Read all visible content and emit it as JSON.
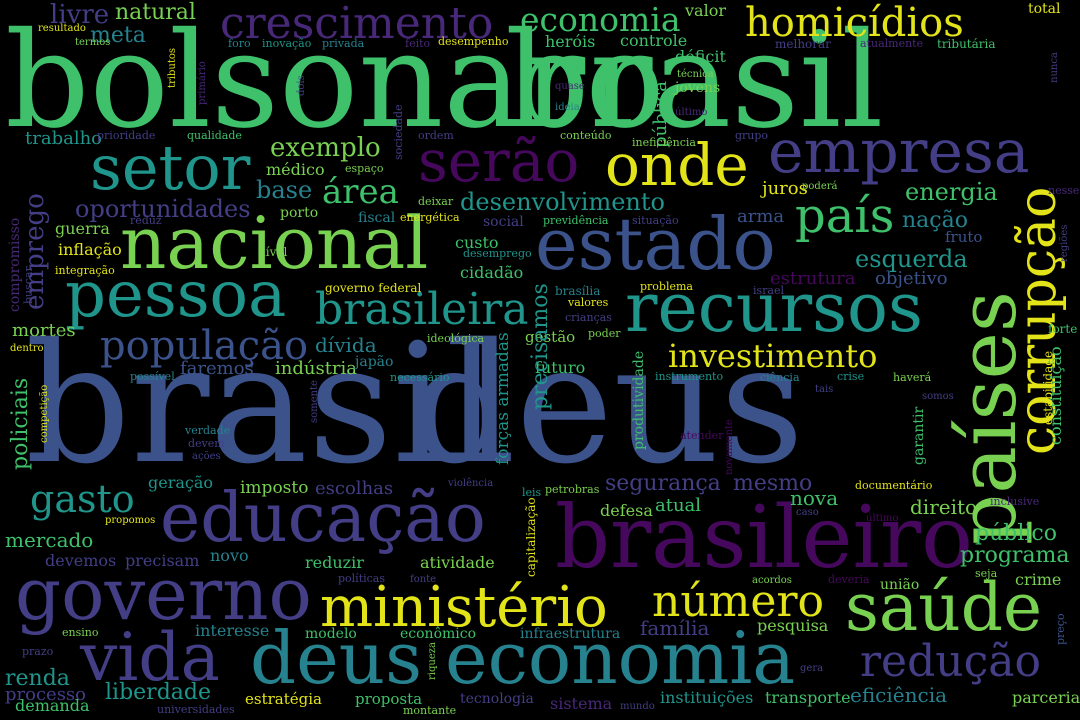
{
  "title": "Word cloud",
  "colors": {
    "background": "#000000",
    "green": "#3ec16a",
    "lime": "#79d151",
    "yellow": "#e2e419",
    "teal": "#1f958b",
    "cyan": "#26828e",
    "blue": "#3b528b",
    "indigo": "#433e85",
    "purple": "#46085c",
    "violet": "#482878"
  },
  "words": [
    {
      "text": "bolsonaro",
      "color": "green"
    },
    {
      "text": "brasil",
      "color": "green"
    },
    {
      "text": "brasil",
      "color": "blue"
    },
    {
      "text": "deus",
      "color": "blue"
    },
    {
      "text": "países",
      "color": "lime"
    },
    {
      "text": "corrupção",
      "color": "yellow"
    },
    {
      "text": "crescimento",
      "color": "violet"
    },
    {
      "text": "economia",
      "color": "green"
    },
    {
      "text": "homicídios",
      "color": "yellow"
    },
    {
      "text": "setor",
      "color": "teal"
    },
    {
      "text": "serão",
      "color": "purple"
    },
    {
      "text": "onde",
      "color": "yellow"
    },
    {
      "text": "empresa",
      "color": "indigo"
    },
    {
      "text": "nacional",
      "color": "lime"
    },
    {
      "text": "estado",
      "color": "blue"
    },
    {
      "text": "país",
      "color": "green"
    },
    {
      "text": "pessoa",
      "color": "teal"
    },
    {
      "text": "recursos",
      "color": "teal"
    },
    {
      "text": "brasileira",
      "color": "teal"
    },
    {
      "text": "população",
      "color": "blue"
    },
    {
      "text": "investimento",
      "color": "yellow"
    },
    {
      "text": "educação",
      "color": "indigo"
    },
    {
      "text": "brasileiro",
      "color": "purple"
    },
    {
      "text": "governo",
      "color": "indigo"
    },
    {
      "text": "ministério",
      "color": "yellow"
    },
    {
      "text": "número",
      "color": "yellow"
    },
    {
      "text": "saúde",
      "color": "lime"
    },
    {
      "text": "vida",
      "color": "indigo"
    },
    {
      "text": "deus",
      "color": "cyan"
    },
    {
      "text": "economia",
      "color": "cyan"
    },
    {
      "text": "redução",
      "color": "indigo"
    },
    {
      "text": "gasto",
      "color": "teal"
    },
    {
      "text": "segurança",
      "color": "indigo"
    },
    {
      "text": "mesmo",
      "color": "indigo"
    },
    {
      "text": "exemplo",
      "color": "lime"
    },
    {
      "text": "área",
      "color": "green"
    },
    {
      "text": "base",
      "color": "cyan"
    },
    {
      "text": "desenvolvimento",
      "color": "teal"
    },
    {
      "text": "energia",
      "color": "green"
    },
    {
      "text": "oportunidades",
      "color": "indigo"
    },
    {
      "text": "nação",
      "color": "cyan"
    },
    {
      "text": "esquerda",
      "color": "teal"
    },
    {
      "text": "emprego",
      "color": "indigo"
    },
    {
      "text": "policiais",
      "color": "green"
    },
    {
      "text": "livre",
      "color": "indigo"
    },
    {
      "text": "natural",
      "color": "lime"
    },
    {
      "text": "meta",
      "color": "cyan"
    },
    {
      "text": "heróis",
      "color": "green"
    },
    {
      "text": "controle",
      "color": "green"
    },
    {
      "text": "déficit",
      "color": "green"
    },
    {
      "text": "valor",
      "color": "lime"
    },
    {
      "text": "total",
      "color": "yellow"
    },
    {
      "text": "trabalho",
      "color": "teal"
    },
    {
      "text": "pública",
      "color": "green"
    },
    {
      "text": "jovens",
      "color": "lime"
    },
    {
      "text": "médico",
      "color": "lime"
    },
    {
      "text": "porto",
      "color": "lime"
    },
    {
      "text": "fiscal",
      "color": "cyan"
    },
    {
      "text": "juros",
      "color": "yellow"
    },
    {
      "text": "guerra",
      "color": "lime"
    },
    {
      "text": "inflação",
      "color": "yellow"
    },
    {
      "text": "arma",
      "color": "blue"
    },
    {
      "text": "fruto",
      "color": "blue"
    },
    {
      "text": "custo",
      "color": "green"
    },
    {
      "text": "cidadão",
      "color": "green"
    },
    {
      "text": "estrutura",
      "color": "purple"
    },
    {
      "text": "objetivo",
      "color": "blue"
    },
    {
      "text": "mortes",
      "color": "lime"
    },
    {
      "text": "dívida",
      "color": "cyan"
    },
    {
      "text": "gestão",
      "color": "lime"
    },
    {
      "text": "faremos",
      "color": "blue"
    },
    {
      "text": "indústria",
      "color": "lime"
    },
    {
      "text": "japão",
      "color": "cyan"
    },
    {
      "text": "futuro",
      "color": "green"
    },
    {
      "text": "precisamos",
      "color": "teal"
    },
    {
      "text": "forças armadas",
      "color": "teal"
    },
    {
      "text": "mercado",
      "color": "green"
    },
    {
      "text": "geração",
      "color": "teal"
    },
    {
      "text": "imposto",
      "color": "lime"
    },
    {
      "text": "escolhas",
      "color": "indigo"
    },
    {
      "text": "nova",
      "color": "green"
    },
    {
      "text": "atual",
      "color": "green"
    },
    {
      "text": "direito",
      "color": "lime"
    },
    {
      "text": "público",
      "color": "green"
    },
    {
      "text": "programa",
      "color": "green"
    },
    {
      "text": "defesa",
      "color": "lime"
    },
    {
      "text": "devemos",
      "color": "indigo"
    },
    {
      "text": "precisam",
      "color": "indigo"
    },
    {
      "text": "novo",
      "color": "cyan"
    },
    {
      "text": "reduzir",
      "color": "green"
    },
    {
      "text": "atividade",
      "color": "lime"
    },
    {
      "text": "crime",
      "color": "lime"
    },
    {
      "text": "união",
      "color": "lime"
    },
    {
      "text": "interesse",
      "color": "cyan"
    },
    {
      "text": "modelo",
      "color": "green"
    },
    {
      "text": "econômico",
      "color": "green"
    },
    {
      "text": "infraestrutura",
      "color": "cyan"
    },
    {
      "text": "família",
      "color": "indigo"
    },
    {
      "text": "pesquisa",
      "color": "lime"
    },
    {
      "text": "renda",
      "color": "teal"
    },
    {
      "text": "processo",
      "color": "indigo"
    },
    {
      "text": "liberdade",
      "color": "teal"
    },
    {
      "text": "demanda",
      "color": "green"
    },
    {
      "text": "estratégia",
      "color": "yellow"
    },
    {
      "text": "proposta",
      "color": "green"
    },
    {
      "text": "tecnologia",
      "color": "indigo"
    },
    {
      "text": "sistema",
      "color": "violet"
    },
    {
      "text": "instituições",
      "color": "teal"
    },
    {
      "text": "transporte",
      "color": "green"
    },
    {
      "text": "eficiência",
      "color": "cyan"
    },
    {
      "text": "parceria",
      "color": "lime"
    },
    {
      "text": "constituição",
      "color": "green"
    },
    {
      "text": "estabilidade",
      "color": "yellow"
    },
    {
      "text": "garantir",
      "color": "green"
    },
    {
      "text": "produtividade",
      "color": "green"
    },
    {
      "text": "compromisso",
      "color": "violet"
    },
    {
      "text": "capitalização",
      "color": "yellow"
    },
    {
      "text": "resultado",
      "color": "yellow"
    },
    {
      "text": "termos",
      "color": "lime"
    },
    {
      "text": "tributos",
      "color": "yellow"
    },
    {
      "text": "primário",
      "color": "violet"
    },
    {
      "text": "foro",
      "color": "cyan"
    },
    {
      "text": "inovação",
      "color": "teal"
    },
    {
      "text": "privada",
      "color": "cyan"
    },
    {
      "text": "feito",
      "color": "violet"
    },
    {
      "text": "desempenho",
      "color": "yellow"
    },
    {
      "text": "melhorar",
      "color": "indigo"
    },
    {
      "text": "atualmente",
      "color": "violet"
    },
    {
      "text": "tributária",
      "color": "green"
    },
    {
      "text": "nunca",
      "color": "indigo"
    },
    {
      "text": "dois",
      "color": "indigo"
    },
    {
      "text": "quase",
      "color": "violet"
    },
    {
      "text": "técnica",
      "color": "lime"
    },
    {
      "text": "ideia",
      "color": "cyan"
    },
    {
      "text": "ineficiência",
      "color": "lime"
    },
    {
      "text": "último",
      "color": "violet"
    },
    {
      "text": "prioridade",
      "color": "indigo"
    },
    {
      "text": "qualidade",
      "color": "green"
    },
    {
      "text": "ordem",
      "color": "indigo"
    },
    {
      "text": "sociedade",
      "color": "indigo"
    },
    {
      "text": "conteúdo",
      "color": "lime"
    },
    {
      "text": "grupo",
      "color": "indigo"
    },
    {
      "text": "poderá",
      "color": "lime"
    },
    {
      "text": "nesse",
      "color": "violet"
    },
    {
      "text": "reduz",
      "color": "indigo"
    },
    {
      "text": "espaço",
      "color": "lime"
    },
    {
      "text": "deixar",
      "color": "lime"
    },
    {
      "text": "energética",
      "color": "yellow"
    },
    {
      "text": "previdência",
      "color": "green"
    },
    {
      "text": "situação",
      "color": "indigo"
    },
    {
      "text": "social",
      "color": "indigo"
    },
    {
      "text": "nível",
      "color": "lime"
    },
    {
      "text": "desemprego",
      "color": "teal"
    },
    {
      "text": "regiões",
      "color": "indigo"
    },
    {
      "text": "integração",
      "color": "yellow"
    },
    {
      "text": "buscar",
      "color": "indigo"
    },
    {
      "text": "governo federal",
      "color": "yellow"
    },
    {
      "text": "problema",
      "color": "yellow"
    },
    {
      "text": "brasília",
      "color": "cyan"
    },
    {
      "text": "israel",
      "color": "indigo"
    },
    {
      "text": "valores",
      "color": "yellow"
    },
    {
      "text": "crianças",
      "color": "indigo"
    },
    {
      "text": "poder",
      "color": "lime"
    },
    {
      "text": "forte",
      "color": "green"
    },
    {
      "text": "dentro",
      "color": "yellow"
    },
    {
      "text": "ideológica",
      "color": "lime"
    },
    {
      "text": "possível",
      "color": "cyan"
    },
    {
      "text": "necessário",
      "color": "teal"
    },
    {
      "text": "instrumento",
      "color": "teal"
    },
    {
      "text": "ciência",
      "color": "cyan"
    },
    {
      "text": "crise",
      "color": "teal"
    },
    {
      "text": "haverá",
      "color": "lime"
    },
    {
      "text": "tais",
      "color": "indigo"
    },
    {
      "text": "somos",
      "color": "indigo"
    },
    {
      "text": "somente",
      "color": "indigo"
    },
    {
      "text": "competição",
      "color": "yellow"
    },
    {
      "text": "verdade",
      "color": "cyan"
    },
    {
      "text": "devem",
      "color": "indigo"
    },
    {
      "text": "ações",
      "color": "indigo"
    },
    {
      "text": "atender",
      "color": "purple"
    },
    {
      "text": "novamente",
      "color": "purple"
    },
    {
      "text": "violência",
      "color": "indigo"
    },
    {
      "text": "leis",
      "color": "teal"
    },
    {
      "text": "petrobras",
      "color": "lime"
    },
    {
      "text": "documentário",
      "color": "yellow"
    },
    {
      "text": "inclusive",
      "color": "violet"
    },
    {
      "text": "caso",
      "color": "indigo"
    },
    {
      "text": "último",
      "color": "purple"
    },
    {
      "text": "propomos",
      "color": "yellow"
    },
    {
      "text": "políticas",
      "color": "indigo"
    },
    {
      "text": "fonte",
      "color": "indigo"
    },
    {
      "text": "acordos",
      "color": "lime"
    },
    {
      "text": "deveria",
      "color": "purple"
    },
    {
      "text": "seja",
      "color": "lime"
    },
    {
      "text": "preço",
      "color": "blue"
    },
    {
      "text": "ensino",
      "color": "lime"
    },
    {
      "text": "prazo",
      "color": "indigo"
    },
    {
      "text": "riqueza",
      "color": "lime"
    },
    {
      "text": "gera",
      "color": "indigo"
    },
    {
      "text": "universidades",
      "color": "indigo"
    },
    {
      "text": "montante",
      "color": "lime"
    },
    {
      "text": "mundo",
      "color": "indigo"
    }
  ]
}
